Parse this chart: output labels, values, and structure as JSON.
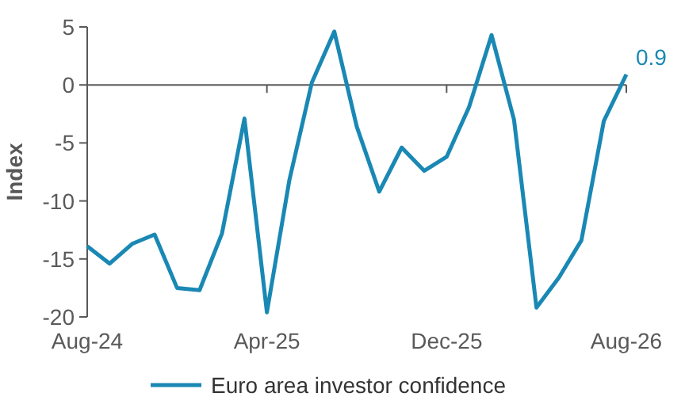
{
  "chart_data": {
    "type": "line",
    "ylabel": "Index",
    "categories": [
      "Aug-24",
      null,
      null,
      null,
      null,
      null,
      null,
      null,
      "Apr-25",
      null,
      null,
      null,
      null,
      null,
      null,
      null,
      "Dec-25",
      null,
      null,
      null,
      null,
      null,
      null,
      null,
      "Aug-26"
    ],
    "series": [
      {
        "name": "Euro area investor confidence",
        "color": "#1a88b4",
        "values": [
          -13.9,
          -15.4,
          -13.7,
          -12.9,
          -17.5,
          -17.7,
          -12.8,
          -2.9,
          -19.6,
          -8.2,
          0.2,
          4.6,
          -3.6,
          -9.2,
          -5.4,
          -7.4,
          -6.2,
          -1.9,
          4.3,
          -3.0,
          -19.2,
          -16.6,
          -13.4,
          -3.1,
          0.9
        ],
        "value_labels": [
          null,
          null,
          null,
          null,
          null,
          null,
          null,
          null,
          null,
          null,
          null,
          null,
          null,
          null,
          null,
          null,
          null,
          null,
          null,
          null,
          null,
          null,
          null,
          null,
          "0.9"
        ]
      }
    ],
    "ylim": [
      -20,
      5
    ],
    "yticks": [
      -20,
      -15,
      -10,
      -5,
      0,
      5
    ],
    "legend": "bottom",
    "marker": "none",
    "line_style": "solid"
  }
}
